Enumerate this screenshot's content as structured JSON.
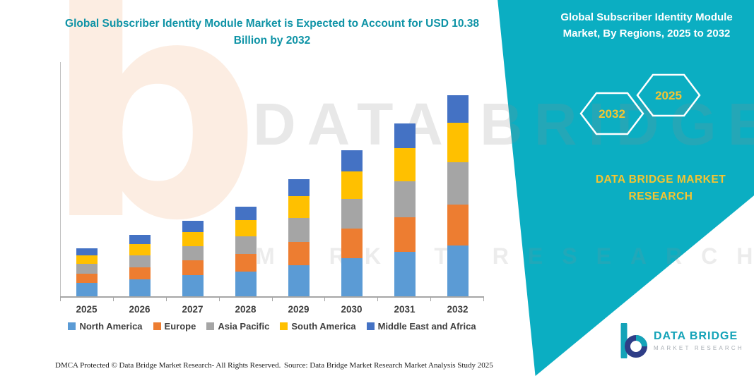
{
  "page": {
    "colors": {
      "teal": "#0BAEC2",
      "title_teal": "#0E93A6",
      "yellow": "#F6C430",
      "watermark_orange": "#ED7D31"
    }
  },
  "header": {
    "left_title": "Global Subscriber Identity Module Market is Expected to Account for USD 10.38 Billion by 2032",
    "right_title": "Global Subscriber Identity Module Market, By Regions, 2025 to 2032"
  },
  "badges": {
    "left_year": "2032",
    "right_year": "2025"
  },
  "side_brand": {
    "line1": "DATA BRIDGE MARKET",
    "line2": "RESEARCH"
  },
  "watermark": {
    "glyph": "b",
    "row1": "DATA BRIDGE",
    "row2": "MARKET RESEARCH"
  },
  "chart_data": {
    "type": "bar",
    "stacked": true,
    "title": "Global Subscriber Identity Module Market, By Regions, 2025 to 2032",
    "xlabel": "",
    "ylabel": "",
    "unit": "USD Billion (estimated from bar heights; 2032 total labeled as 10.38)",
    "ylim": [
      0,
      10.38
    ],
    "grid": false,
    "legend_position": "bottom",
    "categories": [
      "2025",
      "2026",
      "2027",
      "2028",
      "2029",
      "2030",
      "2031",
      "2032"
    ],
    "series": [
      {
        "name": "North America",
        "color": "#5B9BD5",
        "values": [
          0.7,
          0.88,
          1.08,
          1.27,
          1.62,
          1.98,
          2.3,
          2.62
        ]
      },
      {
        "name": "Europe",
        "color": "#ED7D31",
        "values": [
          0.48,
          0.62,
          0.76,
          0.91,
          1.2,
          1.5,
          1.78,
          2.1
        ]
      },
      {
        "name": "Asia Pacific",
        "color": "#A5A5A5",
        "values": [
          0.48,
          0.62,
          0.76,
          0.91,
          1.22,
          1.55,
          1.86,
          2.2
        ]
      },
      {
        "name": "South America",
        "color": "#FFC000",
        "values": [
          0.45,
          0.58,
          0.72,
          0.86,
          1.14,
          1.43,
          1.7,
          2.05
        ]
      },
      {
        "name": "Middle East and Africa",
        "color": "#4472C4",
        "values": [
          0.37,
          0.47,
          0.58,
          0.68,
          0.87,
          1.08,
          1.28,
          1.41
        ]
      }
    ],
    "totals": [
      2.48,
      3.17,
      3.9,
      4.63,
      6.05,
      7.54,
      8.92,
      10.38
    ]
  },
  "footer": {
    "dmca": "DMCA Protected © Data Bridge Market Research- All Rights Reserved.",
    "source": "Source: Data Bridge Market Research Market Analysis Study 2025"
  },
  "logo": {
    "glyph": "b",
    "line1": "DATA BRIDGE",
    "line2": "MARKET RESEARCH"
  }
}
